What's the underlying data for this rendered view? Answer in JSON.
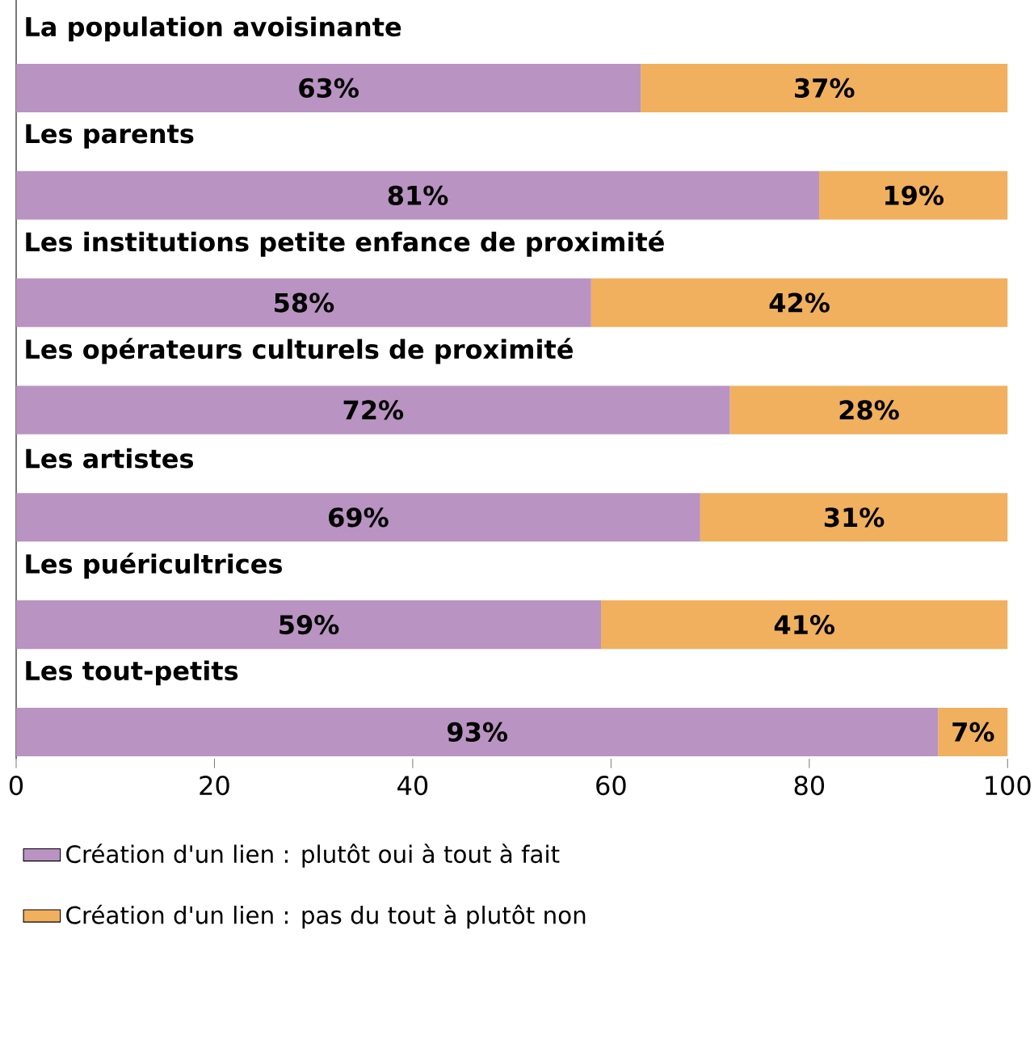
{
  "chart_data": {
    "type": "bar",
    "orientation": "horizontal",
    "stacked": true,
    "categories": [
      "La population avoisinante",
      "Les parents",
      "Les institutions petite enfance de proximité",
      "Les opérateurs culturels de proximité",
      "Les artistes",
      "Les puéricultrices",
      "Les tout-petits"
    ],
    "series": [
      {
        "name": "Création d'un lien : plutôt oui à tout à fait",
        "color": "#b993c1",
        "values": [
          63,
          81,
          58,
          72,
          69,
          59,
          93
        ],
        "value_labels": [
          "63%",
          "81%",
          "58%",
          "72%",
          "69%",
          "59%",
          "93%"
        ]
      },
      {
        "name": "Création d'un lien : pas du tout à plutôt non",
        "color": "#f0b05e",
        "values": [
          37,
          19,
          42,
          28,
          31,
          41,
          7
        ],
        "value_labels": [
          "37%",
          "19%",
          "42%",
          "28%",
          "31%",
          "41%",
          "7%"
        ]
      }
    ],
    "xlim": [
      0,
      100
    ],
    "xticks": [
      0,
      20,
      40,
      60,
      80,
      100
    ],
    "grid": false,
    "legend": "bottom"
  }
}
